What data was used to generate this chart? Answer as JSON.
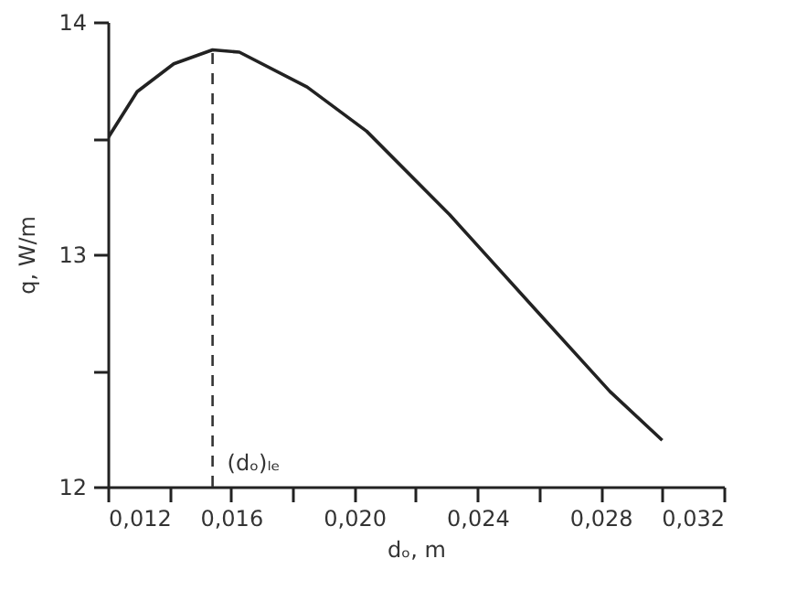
{
  "chart_data": {
    "type": "line",
    "xlabel": "dₒ, m",
    "ylabel": "q, W/m",
    "x": [
      0.012,
      0.01295,
      0.01414,
      0.0154,
      0.01627,
      0.01847,
      0.0204,
      0.0231,
      0.0259,
      0.0283,
      0.03
    ],
    "series": [
      {
        "color": "#222222",
        "values": [
          13.5,
          13.7,
          13.82,
          13.88,
          13.87,
          13.72,
          13.53,
          13.17,
          12.76,
          12.41,
          12.2
        ]
      }
    ],
    "xlim": [
      0.012,
      0.032
    ],
    "ylim": [
      12,
      14
    ],
    "xticks": [
      {
        "value": 0.012,
        "label": "0,012"
      },
      {
        "value": 0.014,
        "label": null
      },
      {
        "value": 0.016,
        "label": "0,016"
      },
      {
        "value": 0.018,
        "label": null
      },
      {
        "value": 0.02,
        "label": "0,020"
      },
      {
        "value": 0.022,
        "label": null
      },
      {
        "value": 0.024,
        "label": "0,024"
      },
      {
        "value": 0.026,
        "label": null
      },
      {
        "value": 0.028,
        "label": "0,028"
      },
      {
        "value": 0.03,
        "label": null
      },
      {
        "value": 0.032,
        "label": "0,032"
      }
    ],
    "yticks": [
      12,
      {
        "value": 12.5,
        "label": null
      },
      13,
      {
        "value": 13.5,
        "label": null
      },
      14
    ],
    "ref_lines": [
      {
        "axis": "x",
        "value": 0.0154,
        "label": "(dₒ)ₗₑ",
        "line_style": "dashed"
      }
    ],
    "grid": false,
    "marker": "none",
    "line_style": "solid"
  }
}
